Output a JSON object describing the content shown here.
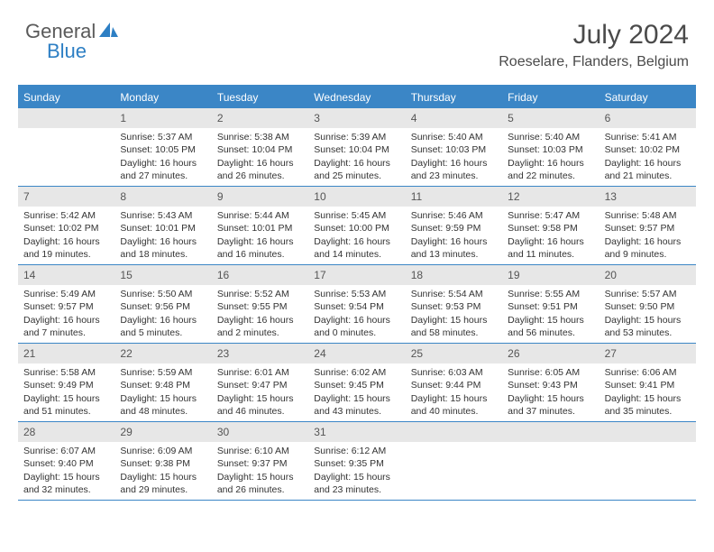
{
  "logo": {
    "part1": "General",
    "part2": "Blue"
  },
  "colors": {
    "brand_blue": "#3b86c6",
    "logo_blue": "#2d7fc4",
    "logo_gray": "#5a5a5a",
    "header_text": "#4a4a4a",
    "daynum_bg": "#e7e7e7",
    "body_text": "#333333",
    "white": "#ffffff"
  },
  "fonts": {
    "family": "Arial",
    "month_title_size": 30,
    "location_size": 16,
    "logo_size": 22,
    "dow_size": 12,
    "daynum_size": 12,
    "body_size": 10.5
  },
  "title": "July 2024",
  "location": "Roeselare, Flanders, Belgium",
  "days_of_week": [
    "Sunday",
    "Monday",
    "Tuesday",
    "Wednesday",
    "Thursday",
    "Friday",
    "Saturday"
  ],
  "weeks": [
    [
      {
        "n": "",
        "sunrise": "",
        "sunset": "",
        "daylight": ""
      },
      {
        "n": "1",
        "sunrise": "Sunrise: 5:37 AM",
        "sunset": "Sunset: 10:05 PM",
        "daylight": "Daylight: 16 hours and 27 minutes."
      },
      {
        "n": "2",
        "sunrise": "Sunrise: 5:38 AM",
        "sunset": "Sunset: 10:04 PM",
        "daylight": "Daylight: 16 hours and 26 minutes."
      },
      {
        "n": "3",
        "sunrise": "Sunrise: 5:39 AM",
        "sunset": "Sunset: 10:04 PM",
        "daylight": "Daylight: 16 hours and 25 minutes."
      },
      {
        "n": "4",
        "sunrise": "Sunrise: 5:40 AM",
        "sunset": "Sunset: 10:03 PM",
        "daylight": "Daylight: 16 hours and 23 minutes."
      },
      {
        "n": "5",
        "sunrise": "Sunrise: 5:40 AM",
        "sunset": "Sunset: 10:03 PM",
        "daylight": "Daylight: 16 hours and 22 minutes."
      },
      {
        "n": "6",
        "sunrise": "Sunrise: 5:41 AM",
        "sunset": "Sunset: 10:02 PM",
        "daylight": "Daylight: 16 hours and 21 minutes."
      }
    ],
    [
      {
        "n": "7",
        "sunrise": "Sunrise: 5:42 AM",
        "sunset": "Sunset: 10:02 PM",
        "daylight": "Daylight: 16 hours and 19 minutes."
      },
      {
        "n": "8",
        "sunrise": "Sunrise: 5:43 AM",
        "sunset": "Sunset: 10:01 PM",
        "daylight": "Daylight: 16 hours and 18 minutes."
      },
      {
        "n": "9",
        "sunrise": "Sunrise: 5:44 AM",
        "sunset": "Sunset: 10:01 PM",
        "daylight": "Daylight: 16 hours and 16 minutes."
      },
      {
        "n": "10",
        "sunrise": "Sunrise: 5:45 AM",
        "sunset": "Sunset: 10:00 PM",
        "daylight": "Daylight: 16 hours and 14 minutes."
      },
      {
        "n": "11",
        "sunrise": "Sunrise: 5:46 AM",
        "sunset": "Sunset: 9:59 PM",
        "daylight": "Daylight: 16 hours and 13 minutes."
      },
      {
        "n": "12",
        "sunrise": "Sunrise: 5:47 AM",
        "sunset": "Sunset: 9:58 PM",
        "daylight": "Daylight: 16 hours and 11 minutes."
      },
      {
        "n": "13",
        "sunrise": "Sunrise: 5:48 AM",
        "sunset": "Sunset: 9:57 PM",
        "daylight": "Daylight: 16 hours and 9 minutes."
      }
    ],
    [
      {
        "n": "14",
        "sunrise": "Sunrise: 5:49 AM",
        "sunset": "Sunset: 9:57 PM",
        "daylight": "Daylight: 16 hours and 7 minutes."
      },
      {
        "n": "15",
        "sunrise": "Sunrise: 5:50 AM",
        "sunset": "Sunset: 9:56 PM",
        "daylight": "Daylight: 16 hours and 5 minutes."
      },
      {
        "n": "16",
        "sunrise": "Sunrise: 5:52 AM",
        "sunset": "Sunset: 9:55 PM",
        "daylight": "Daylight: 16 hours and 2 minutes."
      },
      {
        "n": "17",
        "sunrise": "Sunrise: 5:53 AM",
        "sunset": "Sunset: 9:54 PM",
        "daylight": "Daylight: 16 hours and 0 minutes."
      },
      {
        "n": "18",
        "sunrise": "Sunrise: 5:54 AM",
        "sunset": "Sunset: 9:53 PM",
        "daylight": "Daylight: 15 hours and 58 minutes."
      },
      {
        "n": "19",
        "sunrise": "Sunrise: 5:55 AM",
        "sunset": "Sunset: 9:51 PM",
        "daylight": "Daylight: 15 hours and 56 minutes."
      },
      {
        "n": "20",
        "sunrise": "Sunrise: 5:57 AM",
        "sunset": "Sunset: 9:50 PM",
        "daylight": "Daylight: 15 hours and 53 minutes."
      }
    ],
    [
      {
        "n": "21",
        "sunrise": "Sunrise: 5:58 AM",
        "sunset": "Sunset: 9:49 PM",
        "daylight": "Daylight: 15 hours and 51 minutes."
      },
      {
        "n": "22",
        "sunrise": "Sunrise: 5:59 AM",
        "sunset": "Sunset: 9:48 PM",
        "daylight": "Daylight: 15 hours and 48 minutes."
      },
      {
        "n": "23",
        "sunrise": "Sunrise: 6:01 AM",
        "sunset": "Sunset: 9:47 PM",
        "daylight": "Daylight: 15 hours and 46 minutes."
      },
      {
        "n": "24",
        "sunrise": "Sunrise: 6:02 AM",
        "sunset": "Sunset: 9:45 PM",
        "daylight": "Daylight: 15 hours and 43 minutes."
      },
      {
        "n": "25",
        "sunrise": "Sunrise: 6:03 AM",
        "sunset": "Sunset: 9:44 PM",
        "daylight": "Daylight: 15 hours and 40 minutes."
      },
      {
        "n": "26",
        "sunrise": "Sunrise: 6:05 AM",
        "sunset": "Sunset: 9:43 PM",
        "daylight": "Daylight: 15 hours and 37 minutes."
      },
      {
        "n": "27",
        "sunrise": "Sunrise: 6:06 AM",
        "sunset": "Sunset: 9:41 PM",
        "daylight": "Daylight: 15 hours and 35 minutes."
      }
    ],
    [
      {
        "n": "28",
        "sunrise": "Sunrise: 6:07 AM",
        "sunset": "Sunset: 9:40 PM",
        "daylight": "Daylight: 15 hours and 32 minutes."
      },
      {
        "n": "29",
        "sunrise": "Sunrise: 6:09 AM",
        "sunset": "Sunset: 9:38 PM",
        "daylight": "Daylight: 15 hours and 29 minutes."
      },
      {
        "n": "30",
        "sunrise": "Sunrise: 6:10 AM",
        "sunset": "Sunset: 9:37 PM",
        "daylight": "Daylight: 15 hours and 26 minutes."
      },
      {
        "n": "31",
        "sunrise": "Sunrise: 6:12 AM",
        "sunset": "Sunset: 9:35 PM",
        "daylight": "Daylight: 15 hours and 23 minutes."
      },
      {
        "n": "",
        "sunrise": "",
        "sunset": "",
        "daylight": ""
      },
      {
        "n": "",
        "sunrise": "",
        "sunset": "",
        "daylight": ""
      },
      {
        "n": "",
        "sunrise": "",
        "sunset": "",
        "daylight": ""
      }
    ]
  ]
}
